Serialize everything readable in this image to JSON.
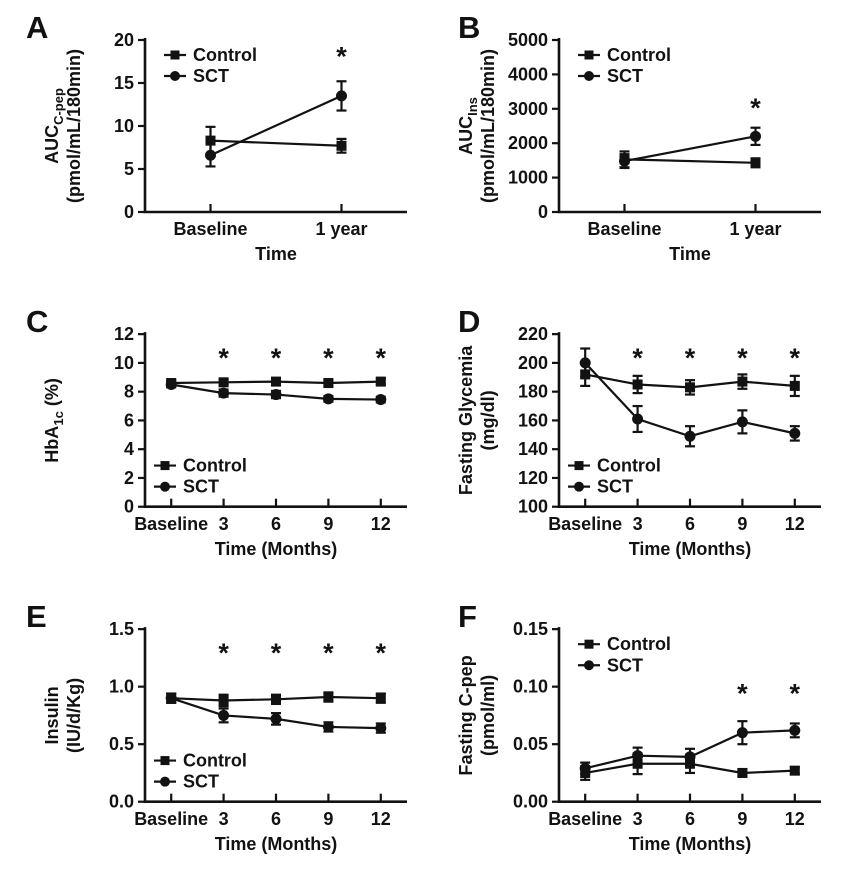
{
  "figure": {
    "background": "#ffffff",
    "ink": "#121212",
    "sig_symbol": "*"
  },
  "chart_data": [
    {
      "panel": "A",
      "type": "line",
      "categories": [
        "Baseline",
        "1 year"
      ],
      "xlabel": "Time",
      "ylabel_plain": "AUC C-pep (pmol/mL/180min)",
      "ylabel_lines": [
        [
          {
            "t": "AUC"
          },
          {
            "t": "C-pep",
            "sub": true
          }
        ],
        [
          {
            "t": "(pmol/mL/180min)"
          }
        ]
      ],
      "ylim": [
        0,
        20
      ],
      "ytick_values": [
        0,
        5,
        10,
        15,
        20
      ],
      "ytick_labels": [
        "0",
        "5",
        "10",
        "15",
        "20"
      ],
      "xpad": 0.25,
      "grid": false,
      "legend_pos": "top-left",
      "series": [
        {
          "name": "Control",
          "marker": "square",
          "values": [
            8.3,
            7.7
          ],
          "errors": [
            1.6,
            0.8
          ]
        },
        {
          "name": "SCT",
          "marker": "circle",
          "values": [
            6.6,
            13.5
          ],
          "errors": [
            1.3,
            1.7
          ]
        }
      ],
      "significance": [
        {
          "category": "1 year",
          "cat": 1,
          "y": 18.2
        }
      ]
    },
    {
      "panel": "B",
      "type": "line",
      "categories": [
        "Baseline",
        "1 year"
      ],
      "xlabel": "Time",
      "ylabel_plain": "AUC Ins (pmol/mL/180min)",
      "ylabel_lines": [
        [
          {
            "t": "AUC"
          },
          {
            "t": "Ins",
            "sub": true
          }
        ],
        [
          {
            "t": "(pmol/mL/180min)"
          }
        ]
      ],
      "ylim": [
        0,
        5000
      ],
      "ytick_values": [
        0,
        1000,
        2000,
        3000,
        4000,
        5000
      ],
      "ytick_labels": [
        "0",
        "1000",
        "2000",
        "3000",
        "4000",
        "5000"
      ],
      "xpad": 0.25,
      "grid": false,
      "legend_pos": "top-left",
      "series": [
        {
          "name": "Control",
          "marker": "square",
          "values": [
            1530,
            1430
          ],
          "errors": [
            230,
            130
          ]
        },
        {
          "name": "SCT",
          "marker": "circle",
          "values": [
            1480,
            2200
          ],
          "errors": [
            200,
            250
          ]
        }
      ],
      "significance": [
        {
          "category": "1 year",
          "cat": 1,
          "y": 3050
        }
      ]
    },
    {
      "panel": "C",
      "type": "line",
      "categories": [
        "Baseline",
        "3",
        "6",
        "9",
        "12"
      ],
      "xlabel": "Time (Months)",
      "ylabel_plain": "HbA1c (%)",
      "ylabel_lines": [
        [
          {
            "t": "HbA"
          },
          {
            "t": "1c",
            "sub": true
          },
          {
            "t": " (%)"
          }
        ]
      ],
      "ylim": [
        0,
        12
      ],
      "ytick_values": [
        0,
        2,
        4,
        6,
        8,
        10,
        12
      ],
      "ytick_labels": [
        "0",
        "2",
        "4",
        "6",
        "8",
        "10",
        "12"
      ],
      "xpad": 0.1,
      "grid": false,
      "legend_pos": "bottom-left",
      "series": [
        {
          "name": "Control",
          "marker": "square",
          "values": [
            8.6,
            8.65,
            8.7,
            8.6,
            8.7
          ],
          "errors": [
            0.2,
            0.2,
            0.2,
            0.2,
            0.2
          ]
        },
        {
          "name": "SCT",
          "marker": "circle",
          "values": [
            8.5,
            7.9,
            7.8,
            7.5,
            7.45
          ],
          "errors": [
            0.2,
            0.25,
            0.25,
            0.2,
            0.2
          ]
        }
      ],
      "significance": [
        {
          "category": "3",
          "cat": 1,
          "y": 10.4
        },
        {
          "category": "6",
          "cat": 2,
          "y": 10.4
        },
        {
          "category": "9",
          "cat": 3,
          "y": 10.4
        },
        {
          "category": "12",
          "cat": 4,
          "y": 10.4
        }
      ]
    },
    {
      "panel": "D",
      "type": "line",
      "categories": [
        "Baseline",
        "3",
        "6",
        "9",
        "12"
      ],
      "xlabel": "Time (Months)",
      "ylabel_plain": "Fasting Glycemia (mg/dl)",
      "ylabel_lines": [
        [
          {
            "t": "Fasting Glycemia"
          }
        ],
        [
          {
            "t": "(mg/dl)"
          }
        ]
      ],
      "ylim": [
        100,
        220
      ],
      "ytick_values": [
        100,
        120,
        140,
        160,
        180,
        200,
        220
      ],
      "ytick_labels": [
        "100",
        "120",
        "140",
        "160",
        "180",
        "200",
        "220"
      ],
      "xpad": 0.1,
      "grid": false,
      "legend_pos": "bottom-left",
      "series": [
        {
          "name": "Control",
          "marker": "square",
          "values": [
            192,
            185,
            183,
            187,
            184
          ],
          "errors": [
            8,
            6,
            5,
            5,
            7
          ]
        },
        {
          "name": "SCT",
          "marker": "circle",
          "values": [
            200,
            161,
            149,
            159,
            151
          ],
          "errors": [
            10,
            9,
            7,
            8,
            5
          ]
        }
      ],
      "significance": [
        {
          "category": "3",
          "cat": 1,
          "y": 204
        },
        {
          "category": "6",
          "cat": 2,
          "y": 204
        },
        {
          "category": "9",
          "cat": 3,
          "y": 204
        },
        {
          "category": "12",
          "cat": 4,
          "y": 204
        }
      ]
    },
    {
      "panel": "E",
      "type": "line",
      "categories": [
        "Baseline",
        "3",
        "6",
        "9",
        "12"
      ],
      "xlabel": "Time (Months)",
      "ylabel_plain": "Insulin (IU/d/Kg)",
      "ylabel_lines": [
        [
          {
            "t": "Insulin"
          }
        ],
        [
          {
            "t": "(IU/d/Kg)"
          }
        ]
      ],
      "ylim": [
        0,
        1.5
      ],
      "ytick_values": [
        0,
        0.5,
        1.0,
        1.5
      ],
      "ytick_labels": [
        "0.0",
        "0.5",
        "1.0",
        "1.5"
      ],
      "xpad": 0.1,
      "grid": false,
      "legend_pos": "bottom-left",
      "series": [
        {
          "name": "Control",
          "marker": "square",
          "values": [
            0.9,
            0.88,
            0.89,
            0.91,
            0.9
          ],
          "errors": [
            0.04,
            0.05,
            0.04,
            0.04,
            0.04
          ]
        },
        {
          "name": "SCT",
          "marker": "circle",
          "values": [
            0.9,
            0.75,
            0.72,
            0.65,
            0.64
          ],
          "errors": [
            0.04,
            0.06,
            0.05,
            0.04,
            0.04
          ]
        }
      ],
      "significance": [
        {
          "category": "3",
          "cat": 1,
          "y": 1.3
        },
        {
          "category": "6",
          "cat": 2,
          "y": 1.3
        },
        {
          "category": "9",
          "cat": 3,
          "y": 1.3
        },
        {
          "category": "12",
          "cat": 4,
          "y": 1.3
        }
      ]
    },
    {
      "panel": "F",
      "type": "line",
      "categories": [
        "Baseline",
        "3",
        "6",
        "9",
        "12"
      ],
      "xlabel": "Time (Months)",
      "ylabel_plain": "Fasting C-pep (pmol/ml)",
      "ylabel_lines": [
        [
          {
            "t": "Fasting C-pep"
          }
        ],
        [
          {
            "t": "(pmol/ml)"
          }
        ]
      ],
      "ylim": [
        0,
        0.15
      ],
      "ytick_values": [
        0,
        0.05,
        0.1,
        0.15
      ],
      "ytick_labels": [
        "0.00",
        "0.05",
        "0.10",
        "0.15"
      ],
      "xpad": 0.1,
      "grid": false,
      "legend_pos": "top-left",
      "series": [
        {
          "name": "Control",
          "marker": "square",
          "values": [
            0.025,
            0.033,
            0.033,
            0.025,
            0.027
          ],
          "errors": [
            0.006,
            0.009,
            0.008,
            0.003,
            0.003
          ]
        },
        {
          "name": "SCT",
          "marker": "circle",
          "values": [
            0.029,
            0.04,
            0.039,
            0.06,
            0.062
          ],
          "errors": [
            0.005,
            0.007,
            0.007,
            0.01,
            0.006
          ]
        }
      ],
      "significance": [
        {
          "category": "9",
          "cat": 3,
          "y": 0.095
        },
        {
          "category": "12",
          "cat": 4,
          "y": 0.095
        }
      ]
    }
  ]
}
